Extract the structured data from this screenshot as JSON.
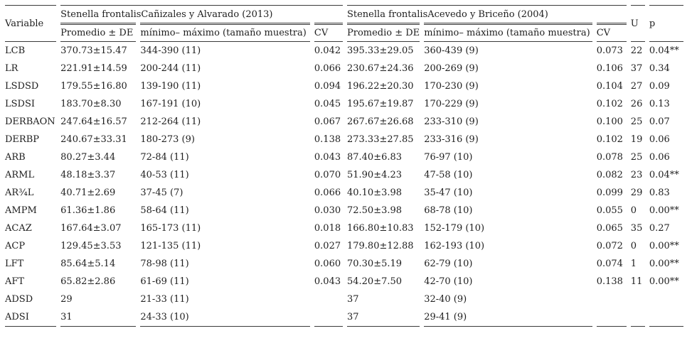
{
  "table": {
    "col_variable": "Variable",
    "col_u": "U",
    "col_p": "p",
    "groups": [
      {
        "title": "Stenella frontalisCañizales y Alvarado (2013)",
        "sub_mean": "Promedio ± DE",
        "sub_range": "mínimo– máximo (tamaño muestra)",
        "sub_cv": "CV"
      },
      {
        "title": "Stenella frontalisAcevedo y Briceño (2004)",
        "sub_mean": "Promedio ± DE",
        "sub_range": "mínimo– máximo (tamaño muestra)",
        "sub_cv": "CV"
      }
    ],
    "rows": [
      {
        "variable": "LCB",
        "g1_mean": "370.73±15.47",
        "g1_range": "344-390 (11)",
        "g1_cv": "0.042",
        "g2_mean": "395.33±29.05",
        "g2_range": "360-439 (9)",
        "g2_cv": "0.073",
        "u": "22",
        "p": "0.04**"
      },
      {
        "variable": "LR",
        "g1_mean": "221.91±14.59",
        "g1_range": "200-244 (11)",
        "g1_cv": "0.066",
        "g2_mean": "230.67±24.36",
        "g2_range": "200-269 (9)",
        "g2_cv": "0.106",
        "u": "37",
        "p": "0.34"
      },
      {
        "variable": "LSDSD",
        "g1_mean": "179.55±16.80",
        "g1_range": "139-190 (11)",
        "g1_cv": "0.094",
        "g2_mean": "196.22±20.30",
        "g2_range": "170-230 (9)",
        "g2_cv": "0.104",
        "u": "27",
        "p": "0.09"
      },
      {
        "variable": "LSDSI",
        "g1_mean": "183.70±8.30",
        "g1_range": "167-191 (10)",
        "g1_cv": "0.045",
        "g2_mean": "195.67±19.87",
        "g2_range": "170-229 (9)",
        "g2_cv": "0.102",
        "u": "26",
        "p": "0.13"
      },
      {
        "variable": "DERBAON",
        "g1_mean": "247.64±16.57",
        "g1_range": "212-264 (11)",
        "g1_cv": "0.067",
        "g2_mean": "267.67±26.68",
        "g2_range": "233-310 (9)",
        "g2_cv": "0.100",
        "u": "25",
        "p": "0.07"
      },
      {
        "variable": "DERBP",
        "g1_mean": "240.67±33.31",
        "g1_range": "180-273 (9)",
        "g1_cv": "0.138",
        "g2_mean": "273.33±27.85",
        "g2_range": "233-316 (9)",
        "g2_cv": "0.102",
        "u": "19",
        "p": "0.06"
      },
      {
        "variable": "ARB",
        "g1_mean": "80.27±3.44",
        "g1_range": "72-84 (11)",
        "g1_cv": "0.043",
        "g2_mean": "87.40±6.83",
        "g2_range": "76-97 (10)",
        "g2_cv": "0.078",
        "u": "25",
        "p": "0.06"
      },
      {
        "variable": "ARML",
        "g1_mean": "48.18±3.37",
        "g1_range": "40-53 (11)",
        "g1_cv": "0.070",
        "g2_mean": "51.90±4.23",
        "g2_range": "47-58 (10)",
        "g2_cv": "0.082",
        "u": "23",
        "p": "0.04**"
      },
      {
        "variable": "AR¾L",
        "g1_mean": "40.71±2.69",
        "g1_range": "37-45 (7)",
        "g1_cv": "0.066",
        "g2_mean": "40.10±3.98",
        "g2_range": "35-47 (10)",
        "g2_cv": "0.099",
        "u": "29",
        "p": "0.83"
      },
      {
        "variable": "AMPM",
        "g1_mean": "61.36±1.86",
        "g1_range": "58-64 (11)",
        "g1_cv": "0.030",
        "g2_mean": "72.50±3.98",
        "g2_range": "68-78 (10)",
        "g2_cv": "0.055",
        "u": "0",
        "p": "0.00**"
      },
      {
        "variable": "ACAZ",
        "g1_mean": "167.64±3.07",
        "g1_range": "165-173 (11)",
        "g1_cv": "0.018",
        "g2_mean": "166.80±10.83",
        "g2_range": "152-179 (10)",
        "g2_cv": "0.065",
        "u": "35",
        "p": "0.27"
      },
      {
        "variable": "ACP",
        "g1_mean": "129.45±3.53",
        "g1_range": "121-135 (11)",
        "g1_cv": "0.027",
        "g2_mean": "179.80±12.88",
        "g2_range": "162-193 (10)",
        "g2_cv": "0.072",
        "u": "0",
        "p": "0.00**"
      },
      {
        "variable": "LFT",
        "g1_mean": "85.64±5.14",
        "g1_range": "78-98 (11)",
        "g1_cv": "0.060",
        "g2_mean": "70.30±5.19",
        "g2_range": "62-79 (10)",
        "g2_cv": "0.074",
        "u": "1",
        "p": "0.00**"
      },
      {
        "variable": "AFT",
        "g1_mean": "65.82±2.86",
        "g1_range": "61-69 (11)",
        "g1_cv": "0.043",
        "g2_mean": "54.20±7.50",
        "g2_range": "42-70 (10)",
        "g2_cv": "0.138",
        "u": "11",
        "p": "0.00**"
      },
      {
        "variable": "ADSD",
        "g1_mean": "29",
        "g1_range": "21-33 (11)",
        "g1_cv": "",
        "g2_mean": "37",
        "g2_range": "32-40 (9)",
        "g2_cv": "",
        "u": "",
        "p": ""
      },
      {
        "variable": "ADSI",
        "g1_mean": "31",
        "g1_range": "24-33 (10)",
        "g1_cv": "",
        "g2_mean": "37",
        "g2_range": "29-41 (9)",
        "g2_cv": "",
        "u": "",
        "p": ""
      }
    ]
  }
}
